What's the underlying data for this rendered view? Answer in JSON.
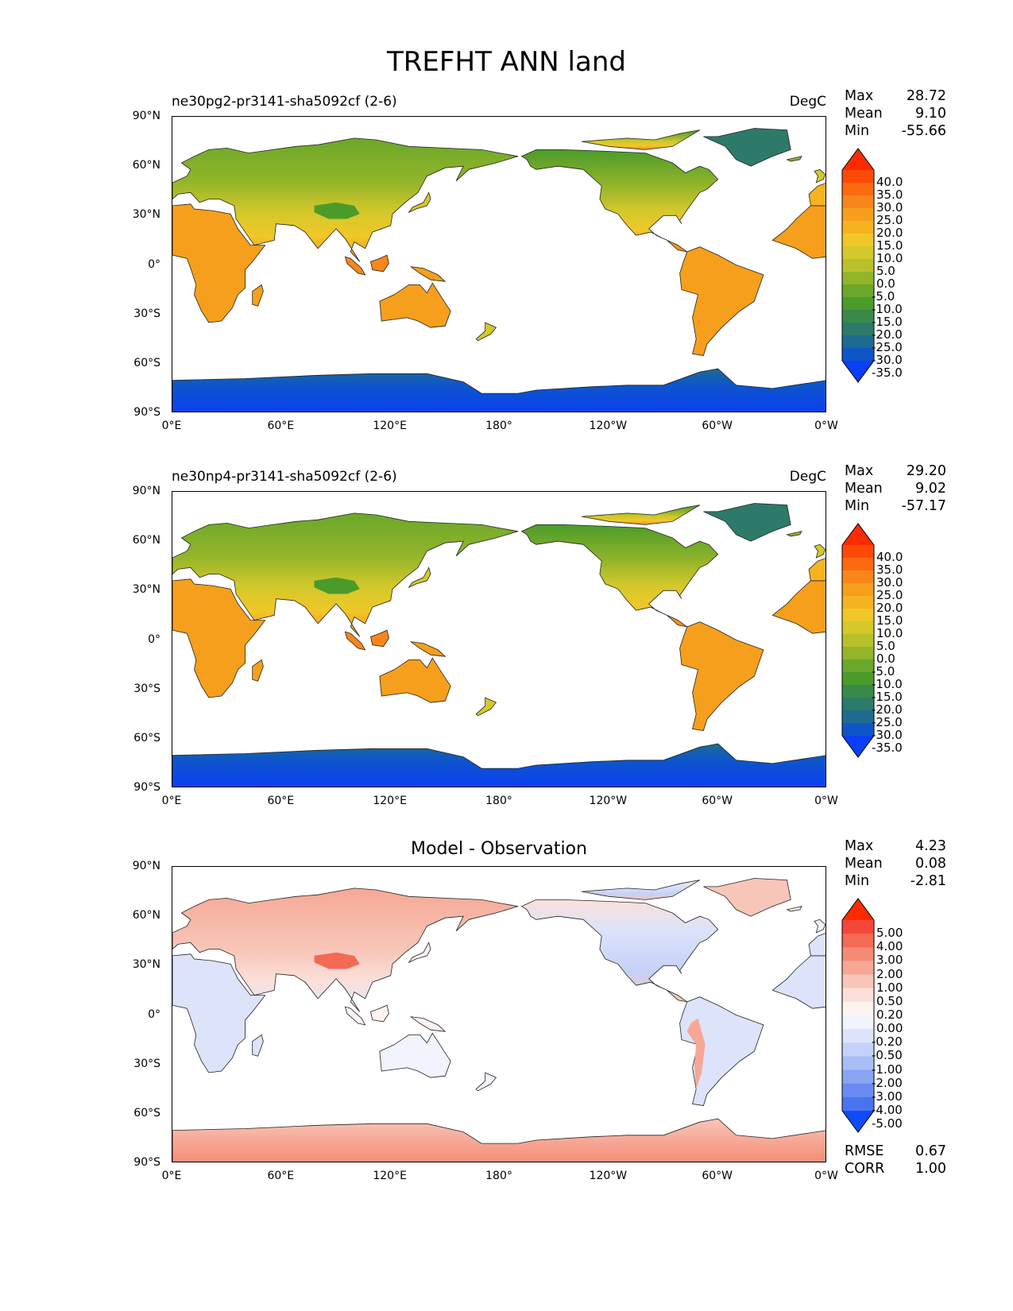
{
  "title": "TREFHT ANN land",
  "axes": {
    "lat_labels": [
      "90°N",
      "60°N",
      "30°N",
      "0°",
      "30°S",
      "60°S",
      "90°S"
    ],
    "lon_labels": [
      "0°E",
      "60°E",
      "120°E",
      "180°",
      "120°W",
      "60°W",
      "0°W"
    ]
  },
  "panels": [
    {
      "id": "test",
      "title_left": "ne30pg2-pr3141-sha5092cf (2-6)",
      "title_center": "",
      "units": "DegC",
      "stats": [
        {
          "label": "Max",
          "value": "28.72"
        },
        {
          "label": "Mean",
          "value": "9.10"
        },
        {
          "label": "Min",
          "value": "-55.66"
        }
      ],
      "colorbar": {
        "labels": [
          "40.0",
          "35.0",
          "30.0",
          "25.0",
          "20.0",
          "15.0",
          "10.0",
          "5.0",
          "0.0",
          "-5.0",
          "-10.0",
          "-15.0",
          "-20.0",
          "-25.0",
          "-30.0",
          "-35.0"
        ],
        "colors": [
          "#fe2b00",
          "#fd4a08",
          "#fb6a10",
          "#f8861a",
          "#f69f1c",
          "#f5b322",
          "#f1c728",
          "#d4c82b",
          "#b8c12c",
          "#93b52a",
          "#6aa72a",
          "#4b9b2a",
          "#398a48",
          "#2d7a6a",
          "#1f6a90",
          "#0e56c8",
          "#0a3ff5"
        ]
      },
      "map_theme": "temperature"
    },
    {
      "id": "reference",
      "title_left": "ne30np4-pr3141-sha5092cf (2-6)",
      "title_center": "",
      "units": "DegC",
      "stats": [
        {
          "label": "Max",
          "value": "29.20"
        },
        {
          "label": "Mean",
          "value": "9.02"
        },
        {
          "label": "Min",
          "value": "-57.17"
        }
      ],
      "colorbar": {
        "labels": [
          "40.0",
          "35.0",
          "30.0",
          "25.0",
          "20.0",
          "15.0",
          "10.0",
          "5.0",
          "0.0",
          "-5.0",
          "-10.0",
          "-15.0",
          "-20.0",
          "-25.0",
          "-30.0",
          "-35.0"
        ],
        "colors": [
          "#fe2b00",
          "#fd4a08",
          "#fb6a10",
          "#f8861a",
          "#f69f1c",
          "#f5b322",
          "#f1c728",
          "#d4c82b",
          "#b8c12c",
          "#93b52a",
          "#6aa72a",
          "#4b9b2a",
          "#398a48",
          "#2d7a6a",
          "#1f6a90",
          "#0e56c8",
          "#0a3ff5"
        ]
      },
      "map_theme": "temperature"
    },
    {
      "id": "difference",
      "title_left": "",
      "title_center": "Model - Observation",
      "units": "",
      "stats": [
        {
          "label": "Max",
          "value": "4.23"
        },
        {
          "label": "Mean",
          "value": "0.08"
        },
        {
          "label": "Min",
          "value": "-2.81"
        }
      ],
      "colorbar": {
        "labels": [
          "5.00",
          "4.00",
          "3.00",
          "2.00",
          "1.00",
          "0.50",
          "0.20",
          "0.00",
          "-0.20",
          "-0.50",
          "-1.00",
          "-2.00",
          "-3.00",
          "-4.00",
          "-5.00"
        ],
        "colors": [
          "#ff2a00",
          "#f4473a",
          "#f36a55",
          "#f58b74",
          "#f6a896",
          "#f8c6b8",
          "#fbe0d9",
          "#fdf3f1",
          "#f1f3fd",
          "#dce3fb",
          "#c5d1f8",
          "#a8bcf6",
          "#8aa4f4",
          "#6a8cf2",
          "#4a73f0",
          "#0f4cf5"
        ]
      },
      "bottom_stats": [
        {
          "label": "RMSE",
          "value": "0.67"
        },
        {
          "label": "CORR",
          "value": "1.00"
        }
      ],
      "map_theme": "difference"
    }
  ]
}
